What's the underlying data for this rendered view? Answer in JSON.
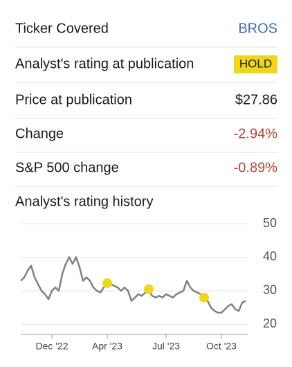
{
  "rows": [
    {
      "label": "Ticker Covered",
      "value": "BROS"
    },
    {
      "label": "Analyst's rating at publication",
      "value": "HOLD"
    },
    {
      "label": "Price at publication",
      "value": "$27.86"
    },
    {
      "label": "Change",
      "value": "-2.94%"
    },
    {
      "label": "S&P 500 change",
      "value": "-0.89%"
    }
  ],
  "chart_data": {
    "type": "line",
    "title": "Analyst's rating history",
    "categories": [
      null,
      null,
      null,
      null,
      null,
      null,
      null,
      null,
      null,
      "Dec '22",
      null,
      null,
      null,
      null,
      null,
      null,
      null,
      null,
      null,
      null,
      null,
      null,
      null,
      null,
      null,
      "Apr '23",
      null,
      null,
      null,
      null,
      null,
      null,
      null,
      null,
      null,
      null,
      null,
      null,
      null,
      null,
      null,
      null,
      "Jul '23",
      null,
      null,
      null,
      null,
      null,
      null,
      null,
      null,
      null,
      null,
      null,
      null,
      null,
      null,
      null,
      "Oct '23",
      null,
      null,
      null,
      null,
      null,
      null,
      null
    ],
    "series": [
      {
        "kind": "line",
        "color": "#808080",
        "values": [
          33,
          34,
          36,
          37.5,
          34,
          32,
          30,
          29,
          27.5,
          30,
          31,
          30,
          35,
          38,
          40,
          38,
          40,
          37,
          33,
          34,
          33,
          31,
          30,
          29.5,
          31,
          32,
          32,
          31.5,
          31,
          30,
          31,
          30,
          27,
          28,
          29,
          28.5,
          29.5,
          30,
          28.5,
          28,
          28.5,
          28,
          29,
          28.5,
          28,
          29,
          29.5,
          30,
          33,
          31,
          30,
          29.5,
          29,
          28,
          27,
          25,
          24,
          23.5,
          23.5,
          24.5,
          25.5,
          26,
          24.5,
          24,
          26.5,
          27
        ]
      },
      {
        "kind": "dots",
        "color": "#f0d619",
        "values": [
          null,
          null,
          null,
          null,
          null,
          null,
          null,
          null,
          null,
          null,
          null,
          null,
          null,
          null,
          null,
          null,
          null,
          null,
          null,
          null,
          null,
          null,
          null,
          null,
          null,
          32.3,
          null,
          null,
          null,
          null,
          null,
          null,
          null,
          null,
          null,
          null,
          null,
          30.5,
          null,
          null,
          null,
          null,
          null,
          null,
          null,
          null,
          null,
          null,
          null,
          null,
          null,
          null,
          null,
          28,
          null,
          null,
          null,
          null,
          null,
          null,
          null,
          null,
          null,
          null,
          null,
          null
        ]
      }
    ],
    "ylim": [
      17,
      50
    ],
    "yticks": [
      20,
      30,
      40,
      50
    ],
    "grid": true
  }
}
